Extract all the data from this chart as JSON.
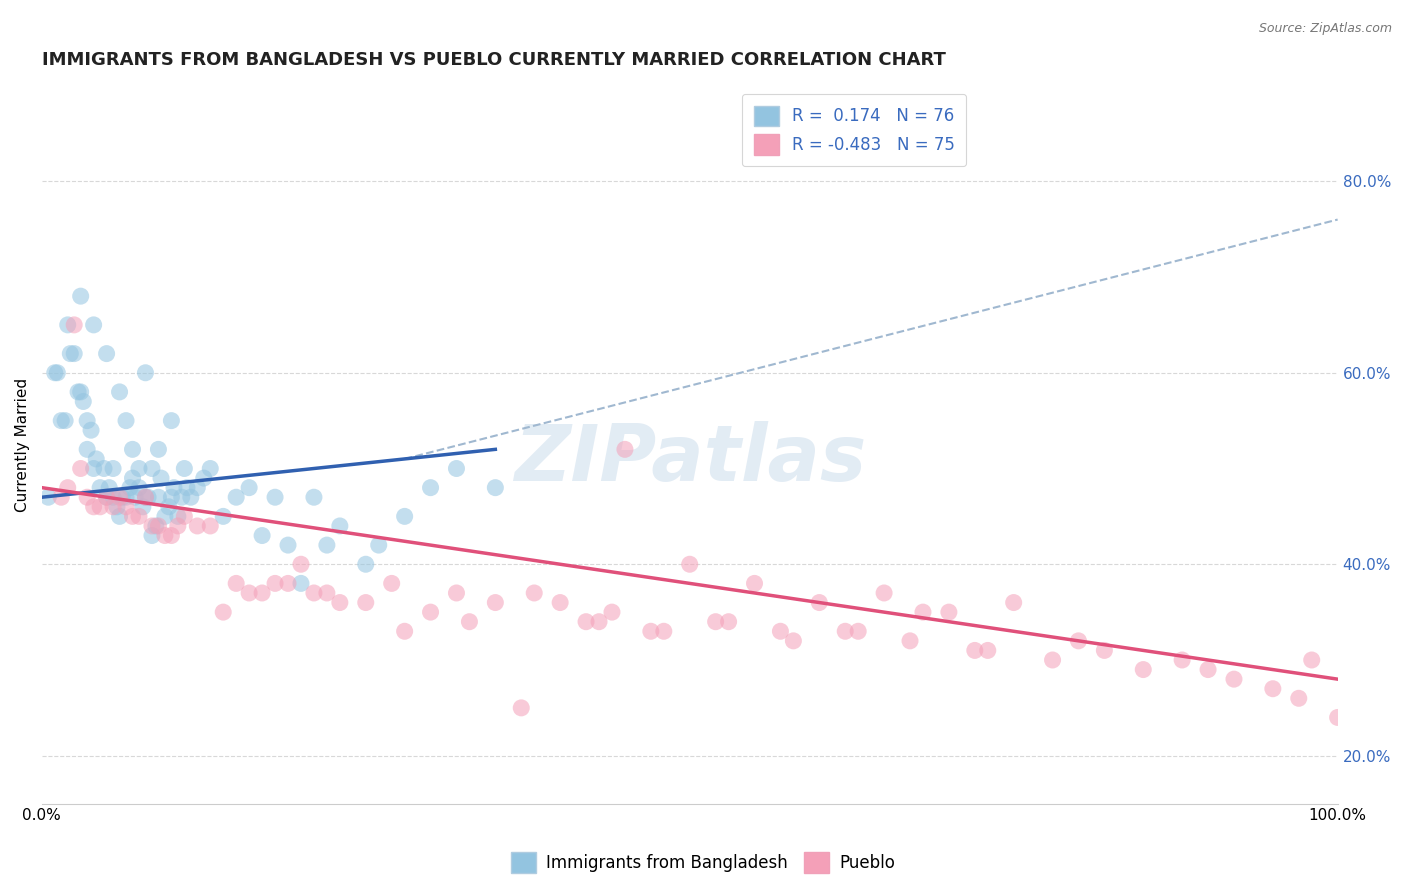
{
  "title": "IMMIGRANTS FROM BANGLADESH VS PUEBLO CURRENTLY MARRIED CORRELATION CHART",
  "source": "Source: ZipAtlas.com",
  "ylabel": "Currently Married",
  "legend_label1": "Immigrants from Bangladesh",
  "legend_label2": "Pueblo",
  "r1": 0.174,
  "n1": 76,
  "r2": -0.483,
  "n2": 75,
  "color_blue": "#93c4e0",
  "color_pink": "#f4a0b8",
  "color_blue_line": "#3060b0",
  "color_pink_line": "#e0507a",
  "color_grey_dashed": "#a0b8d0",
  "watermark": "ZIPatlas",
  "blue_points_x": [
    0.5,
    1.0,
    1.5,
    2.0,
    2.5,
    3.0,
    3.0,
    3.5,
    3.5,
    4.0,
    4.0,
    4.5,
    5.0,
    5.0,
    5.5,
    5.5,
    6.0,
    6.0,
    6.5,
    6.5,
    7.0,
    7.0,
    7.5,
    7.5,
    8.0,
    8.0,
    8.5,
    8.5,
    9.0,
    9.0,
    9.5,
    10.0,
    10.0,
    10.5,
    11.0,
    11.5,
    12.0,
    13.0,
    14.0,
    15.0,
    16.0,
    17.0,
    18.0,
    20.0,
    22.0,
    25.0,
    28.0,
    30.0,
    1.2,
    1.8,
    2.2,
    2.8,
    3.2,
    3.8,
    4.2,
    4.8,
    5.2,
    5.8,
    6.2,
    6.8,
    7.2,
    7.8,
    8.2,
    8.8,
    9.2,
    9.8,
    10.2,
    10.8,
    11.2,
    12.5,
    19.0,
    21.0,
    23.0,
    26.0,
    32.0,
    35.0
  ],
  "blue_points_y": [
    47,
    60,
    55,
    65,
    62,
    58,
    68,
    55,
    52,
    50,
    65,
    48,
    47,
    62,
    50,
    47,
    45,
    58,
    47,
    55,
    49,
    52,
    48,
    50,
    47,
    60,
    43,
    50,
    47,
    52,
    45,
    47,
    55,
    45,
    50,
    47,
    48,
    50,
    45,
    47,
    48,
    43,
    47,
    38,
    42,
    40,
    45,
    48,
    60,
    55,
    62,
    58,
    57,
    54,
    51,
    50,
    48,
    46,
    47,
    48,
    47,
    46,
    47,
    44,
    49,
    46,
    48,
    47,
    48,
    49,
    42,
    47,
    44,
    42,
    50,
    48
  ],
  "pink_points_x": [
    1.5,
    2.0,
    2.5,
    3.0,
    4.0,
    5.0,
    5.5,
    6.0,
    7.0,
    8.0,
    9.0,
    10.0,
    11.0,
    12.0,
    14.0,
    15.0,
    16.0,
    18.0,
    20.0,
    22.0,
    25.0,
    27.0,
    30.0,
    32.0,
    35.0,
    38.0,
    40.0,
    42.0,
    44.0,
    45.0,
    48.0,
    50.0,
    52.0,
    55.0,
    57.0,
    60.0,
    62.0,
    65.0,
    68.0,
    70.0,
    72.0,
    75.0,
    78.0,
    80.0,
    82.0,
    85.0,
    88.0,
    90.0,
    92.0,
    95.0,
    97.0,
    98.0,
    100.0,
    3.5,
    4.5,
    6.5,
    7.5,
    8.5,
    9.5,
    10.5,
    13.0,
    17.0,
    19.0,
    21.0,
    23.0,
    28.0,
    33.0,
    37.0,
    43.0,
    47.0,
    53.0,
    58.0,
    63.0,
    67.0,
    73.0
  ],
  "pink_points_y": [
    47,
    48,
    65,
    50,
    46,
    47,
    46,
    47,
    45,
    47,
    44,
    43,
    45,
    44,
    35,
    38,
    37,
    38,
    40,
    37,
    36,
    38,
    35,
    37,
    36,
    37,
    36,
    34,
    35,
    52,
    33,
    40,
    34,
    38,
    33,
    36,
    33,
    37,
    35,
    35,
    31,
    36,
    30,
    32,
    31,
    29,
    30,
    29,
    28,
    27,
    26,
    30,
    24,
    47,
    46,
    46,
    45,
    44,
    43,
    44,
    44,
    37,
    38,
    37,
    36,
    33,
    34,
    25,
    34,
    33,
    34,
    32,
    33,
    32,
    31
  ],
  "xlim": [
    0,
    100
  ],
  "ylim": [
    15,
    90
  ],
  "ytick_labels_right": [
    "20.0%",
    "40.0%",
    "60.0%",
    "80.0%"
  ],
  "ytick_vals": [
    20,
    40,
    60,
    80
  ],
  "xtick_vals": [
    0,
    100
  ],
  "xtick_labels": [
    "0.0%",
    "100.0%"
  ],
  "grid_color": "#d8d8d8",
  "grid_style": "--",
  "background_color": "#ffffff",
  "title_fontsize": 13,
  "axis_label_fontsize": 11,
  "tick_fontsize": 11,
  "legend_fontsize": 12,
  "blue_line_x0": 0,
  "blue_line_y0": 47,
  "blue_line_x1": 35,
  "blue_line_y1": 52,
  "pink_line_x0": 0,
  "pink_line_y0": 48,
  "pink_line_x1": 100,
  "pink_line_y1": 28,
  "grey_line_x0": 28,
  "grey_line_y0": 51,
  "grey_line_x1": 100,
  "grey_line_y1": 76
}
